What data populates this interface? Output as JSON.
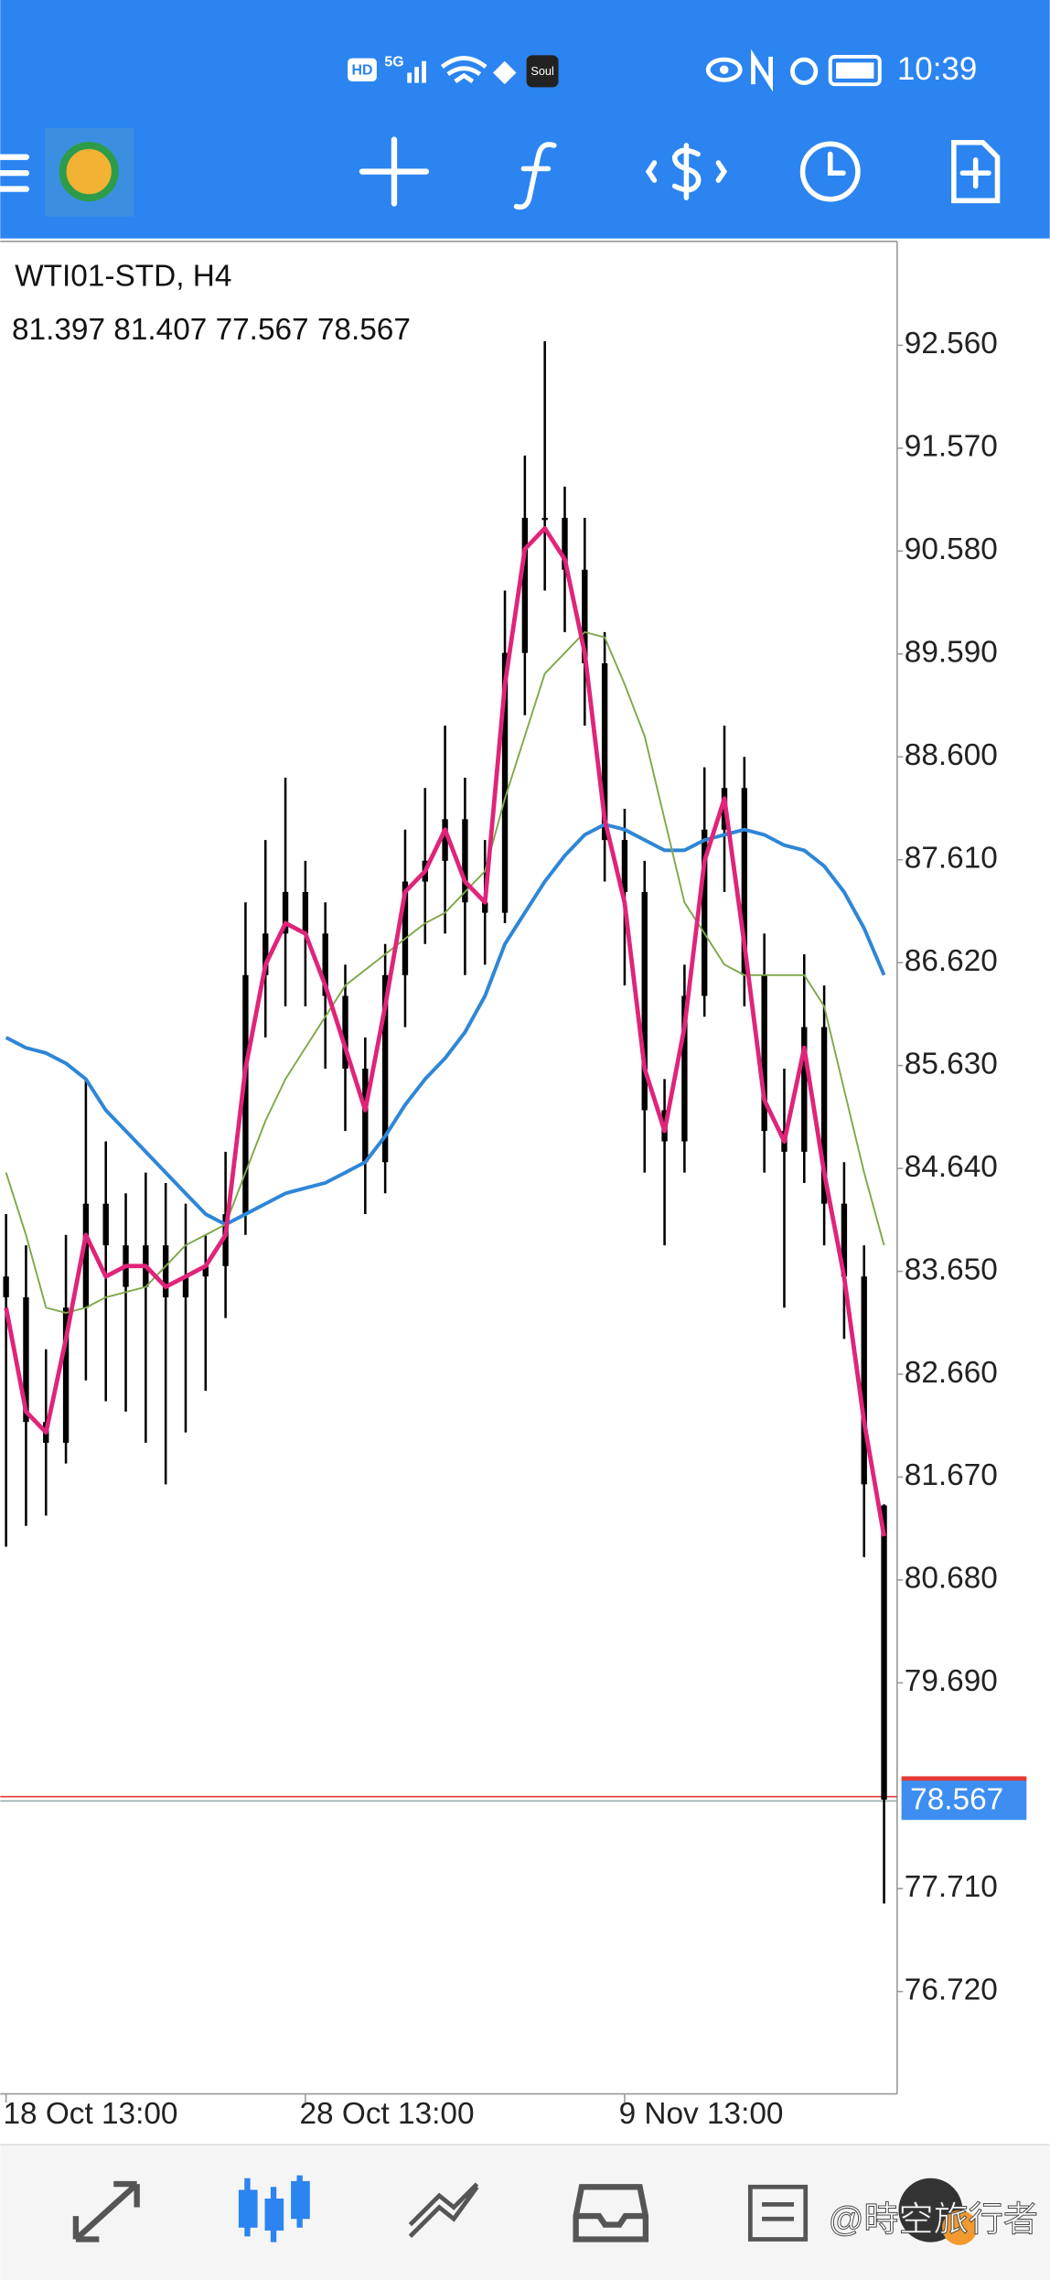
{
  "status_bar": {
    "hd": "HD",
    "network": "5G",
    "app": "Soul",
    "time": "10:39"
  },
  "chart_data": {
    "type": "candlestick",
    "title": "WTI01-STD, H4",
    "subtitle": "81.397 81.407 77.567 78.567",
    "categories": [
      "18 Oct 13:00",
      null,
      null,
      null,
      null,
      null,
      null,
      null,
      null,
      null,
      null,
      null,
      null,
      null,
      null,
      "28 Oct 13:00",
      null,
      null,
      null,
      null,
      null,
      null,
      null,
      null,
      null,
      null,
      null,
      null,
      null,
      null,
      null,
      "9 Nov 13:00",
      null,
      null,
      null,
      null,
      null,
      null,
      null,
      null,
      null,
      null,
      null,
      null,
      null
    ],
    "open": [
      83.6,
      83.4,
      82.2,
      82.0,
      83.3,
      84.3,
      83.9,
      83.5,
      83.9,
      83.4,
      83.6,
      83.7,
      84.2,
      86.5,
      86.9,
      87.3,
      86.9,
      86.3,
      85.6,
      84.7,
      86.5,
      87.4,
      87.6,
      88.0,
      87.2,
      87.1,
      89.6,
      90.9,
      90.9,
      90.4,
      89.5,
      87.8,
      87.3,
      85.2,
      84.9,
      86.3,
      87.9,
      88.3,
      86.5,
      85.0,
      84.8,
      86.0,
      84.3,
      83.6,
      81.397
    ],
    "high": [
      84.2,
      83.9,
      82.9,
      84.0,
      85.5,
      84.9,
      84.4,
      84.6,
      84.5,
      84.3,
      84.0,
      84.8,
      87.2,
      87.8,
      88.4,
      87.6,
      87.2,
      86.6,
      85.9,
      86.8,
      87.9,
      88.3,
      88.9,
      88.4,
      87.8,
      90.2,
      91.5,
      92.6,
      91.2,
      90.9,
      89.8,
      88.1,
      87.6,
      85.5,
      86.6,
      88.5,
      88.9,
      88.6,
      86.9,
      85.6,
      86.7,
      86.4,
      84.7,
      83.9,
      81.407
    ],
    "low": [
      81.0,
      81.2,
      81.3,
      81.8,
      82.6,
      82.4,
      82.3,
      82.0,
      81.6,
      82.1,
      82.5,
      83.2,
      84.0,
      85.9,
      86.2,
      86.2,
      85.6,
      85.0,
      84.2,
      84.4,
      86.0,
      86.8,
      86.9,
      86.5,
      86.6,
      87.0,
      89.0,
      90.2,
      89.8,
      88.9,
      87.4,
      86.4,
      84.6,
      83.9,
      84.6,
      86.1,
      87.3,
      86.2,
      84.6,
      83.3,
      84.5,
      83.9,
      83.0,
      80.9,
      77.567
    ],
    "close": [
      83.4,
      82.2,
      82.0,
      83.3,
      84.3,
      83.9,
      83.5,
      83.9,
      83.4,
      83.6,
      83.7,
      84.2,
      86.5,
      86.9,
      87.3,
      86.9,
      86.3,
      85.6,
      84.7,
      86.5,
      87.4,
      87.6,
      88.0,
      87.2,
      87.1,
      89.6,
      90.9,
      90.9,
      90.4,
      89.5,
      87.8,
      87.3,
      85.2,
      84.9,
      86.3,
      87.9,
      88.3,
      86.5,
      85.0,
      84.8,
      86.0,
      84.3,
      83.6,
      81.6,
      78.567
    ],
    "color": "#000000",
    "overlays": [
      {
        "color": "#2f86d6",
        "values": [
          85.9,
          85.8,
          85.75,
          85.65,
          85.5,
          85.2,
          85.0,
          84.8,
          84.6,
          84.4,
          84.2,
          84.1,
          84.2,
          84.3,
          84.4,
          84.45,
          84.5,
          84.6,
          84.7,
          84.95,
          85.25,
          85.5,
          85.7,
          85.95,
          86.3,
          86.8,
          87.1,
          87.4,
          87.65,
          87.85,
          87.95,
          87.9,
          87.8,
          87.7,
          87.7,
          87.8,
          87.85,
          87.9,
          87.85,
          87.75,
          87.7,
          87.55,
          87.3,
          86.95,
          86.5
        ]
      },
      {
        "color": "#7fa84a",
        "values": [
          84.6,
          84.0,
          83.3,
          83.25,
          83.3,
          83.4,
          83.45,
          83.5,
          83.7,
          83.9,
          84.0,
          84.1,
          84.6,
          85.1,
          85.5,
          85.8,
          86.1,
          86.4,
          86.55,
          86.7,
          86.85,
          87.0,
          87.1,
          87.3,
          87.5,
          88.2,
          88.8,
          89.4,
          89.6,
          89.8,
          89.75,
          89.3,
          88.8,
          88.0,
          87.2,
          86.9,
          86.6,
          86.5,
          86.5,
          86.5,
          86.5,
          86.2,
          85.4,
          84.6,
          83.9
        ]
      },
      {
        "color": "#e0247a",
        "values": [
          83.3,
          82.3,
          82.1,
          83.0,
          84.0,
          83.6,
          83.7,
          83.7,
          83.5,
          83.6,
          83.7,
          84.0,
          85.6,
          86.6,
          87.0,
          86.9,
          86.4,
          85.8,
          85.2,
          86.2,
          87.3,
          87.5,
          87.9,
          87.4,
          87.2,
          89.3,
          90.6,
          90.8,
          90.5,
          89.6,
          88.0,
          87.2,
          85.6,
          85.0,
          86.0,
          87.6,
          88.2,
          86.8,
          85.3,
          84.9,
          85.8,
          84.6,
          83.6,
          82.2,
          81.1
        ]
      }
    ],
    "ylim": [
      75.735,
      93.56
    ],
    "yticks": [
      {
        "value": 92.56,
        "label": "92.560"
      },
      {
        "value": 91.57,
        "label": "91.570"
      },
      {
        "value": 90.58,
        "label": "90.580"
      },
      {
        "value": 89.59,
        "label": "89.590"
      },
      {
        "value": 88.6,
        "label": "88.600"
      },
      {
        "value": 87.61,
        "label": "87.610"
      },
      {
        "value": 86.62,
        "label": "86.620"
      },
      {
        "value": 85.63,
        "label": "85.630"
      },
      {
        "value": 84.64,
        "label": "84.640"
      },
      {
        "value": 83.65,
        "label": "83.650"
      },
      {
        "value": 82.66,
        "label": "82.660"
      },
      {
        "value": 81.67,
        "label": "81.670"
      },
      {
        "value": 80.68,
        "label": "80.680"
      },
      {
        "value": 79.69,
        "label": "79.690"
      },
      {
        "value": 77.71,
        "label": "77.710"
      },
      {
        "value": 76.72,
        "label": "76.720"
      }
    ],
    "price_line": {
      "value": 78.567,
      "label": "78.567",
      "color": "#e53935",
      "tag_color": "#3d8ef0"
    },
    "grid": false
  },
  "watermark": "@時空旅行者"
}
